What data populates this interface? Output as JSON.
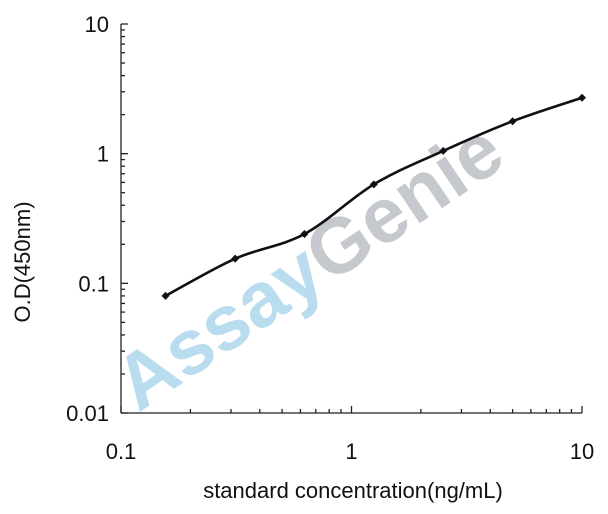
{
  "chart_data": {
    "type": "line",
    "x_scale": "log",
    "y_scale": "log",
    "xlim": [
      0.1,
      10
    ],
    "ylim": [
      0.01,
      10
    ],
    "x_ticks": [
      "0.1",
      "1",
      "10"
    ],
    "y_ticks": [
      "10",
      "1",
      "0.1",
      "0.01"
    ],
    "xlabel": "standard concentration(ng/mL)",
    "ylabel": "O.D(450nm)",
    "grid": false,
    "legend": "none",
    "series": [
      {
        "x": [
          0.156,
          0.313,
          0.625,
          1.25,
          2.5,
          5,
          10
        ],
        "y": [
          0.08,
          0.155,
          0.24,
          0.58,
          1.05,
          1.78,
          2.7
        ],
        "color": "#111111",
        "marker": "diamond"
      }
    ]
  },
  "watermark": {
    "part1": "Assay",
    "part2": "Genie",
    "color1": "#b9dcef",
    "color2": "#c5c8cc"
  }
}
